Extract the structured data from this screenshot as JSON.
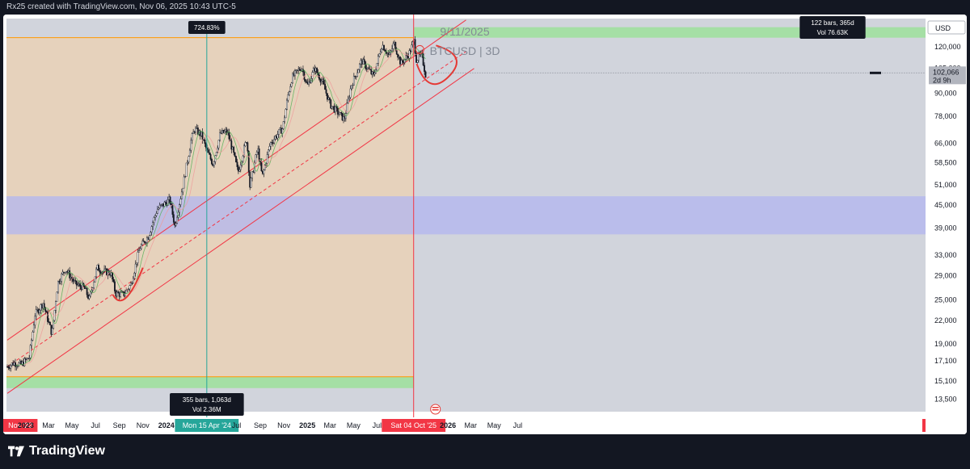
{
  "header": {
    "attribution": "Rx25 created with TradingView.com, Nov 06, 2025 10:43 UTC-5"
  },
  "footer": {
    "brand": "TradingView",
    "logo_icon": "tradingview-logo-icon"
  },
  "chart_data": {
    "type": "candlestick",
    "title": "9/11/2025",
    "subtitle": "BTCUSD | 3D",
    "currency": "USD",
    "y_scale": "log",
    "ylim": [
      12000,
      150000
    ],
    "y_ticks": [
      "120,000",
      "105,000",
      "90,000",
      "78,000",
      "66,000",
      "58,500",
      "51,000",
      "45,000",
      "39,000",
      "33,000",
      "29,000",
      "25,000",
      "22,000",
      "19,000",
      "17,100",
      "15,100",
      "13,500"
    ],
    "x_ticks": [
      "Nov '22",
      "2023",
      "Mar",
      "May",
      "Jul",
      "Sep",
      "Nov",
      "2024",
      "Ma",
      "Mon 15 Apr '24",
      "Jul",
      "Sep",
      "Nov",
      "2025",
      "Mar",
      "May",
      "Jul",
      "Sat 04 Oct '25",
      "2026",
      "Mar",
      "May",
      "Jul"
    ],
    "price_series": [
      [
        "2022-11-14",
        16500
      ],
      [
        "2022-12-01",
        16900
      ],
      [
        "2022-12-20",
        16700
      ],
      [
        "2023-01-10",
        17500
      ],
      [
        "2023-01-25",
        22800
      ],
      [
        "2023-02-15",
        24500
      ],
      [
        "2023-03-10",
        20200
      ],
      [
        "2023-03-25",
        27800
      ],
      [
        "2023-04-14",
        30300
      ],
      [
        "2023-05-10",
        27500
      ],
      [
        "2023-06-01",
        27000
      ],
      [
        "2023-06-15",
        25100
      ],
      [
        "2023-07-05",
        30500
      ],
      [
        "2023-07-20",
        29800
      ],
      [
        "2023-08-10",
        29500
      ],
      [
        "2023-08-22",
        26000
      ],
      [
        "2023-09-12",
        25800
      ],
      [
        "2023-10-01",
        27500
      ],
      [
        "2023-10-24",
        34500
      ],
      [
        "2023-11-15",
        37000
      ],
      [
        "2023-12-08",
        43800
      ],
      [
        "2024-01-10",
        46500
      ],
      [
        "2024-01-23",
        39500
      ],
      [
        "2024-02-15",
        52000
      ],
      [
        "2024-03-05",
        67000
      ],
      [
        "2024-03-14",
        72000
      ],
      [
        "2024-04-01",
        69500
      ],
      [
        "2024-04-15",
        63000
      ],
      [
        "2024-05-01",
        58000
      ],
      [
        "2024-05-20",
        70000
      ],
      [
        "2024-06-07",
        71000
      ],
      [
        "2024-06-25",
        61000
      ],
      [
        "2024-07-05",
        55000
      ],
      [
        "2024-07-28",
        68000
      ],
      [
        "2024-08-05",
        50500
      ],
      [
        "2024-08-25",
        64000
      ],
      [
        "2024-09-06",
        53500
      ],
      [
        "2024-09-27",
        66000
      ],
      [
        "2024-10-29",
        72500
      ],
      [
        "2024-11-12",
        89000
      ],
      [
        "2024-11-22",
        99000
      ],
      [
        "2024-12-17",
        106000
      ],
      [
        "2025-01-01",
        94000
      ],
      [
        "2025-01-20",
        105000
      ],
      [
        "2025-02-10",
        96000
      ],
      [
        "2025-03-01",
        84000
      ],
      [
        "2025-04-07",
        76500
      ],
      [
        "2025-04-25",
        94500
      ],
      [
        "2025-05-22",
        110000
      ],
      [
        "2025-06-22",
        100000
      ],
      [
        "2025-07-14",
        122000
      ],
      [
        "2025-08-02",
        113000
      ],
      [
        "2025-08-14",
        123000
      ],
      [
        "2025-09-01",
        108000
      ],
      [
        "2025-09-22",
        115000
      ],
      [
        "2025-10-06",
        125000
      ],
      [
        "2025-10-10",
        111000
      ],
      [
        "2025-10-25",
        114000
      ],
      [
        "2025-11-04",
        101000
      ],
      [
        "2025-11-06",
        102066
      ]
    ],
    "last_price": "102,066",
    "last_price_countdown": "2d 9h",
    "measure_tools": [
      {
        "percent": "724.83%",
        "bars": "355 bars, 1,063d",
        "volume": "Vol 2.36M"
      },
      {
        "bars": "122 bars, 365d",
        "volume": "Vol 76.63K"
      }
    ],
    "range_high": 127000,
    "range_low": 15500,
    "blue_zone": [
      37500,
      47500
    ],
    "colors": {
      "up": "#089981",
      "down": "#f23645",
      "channel": "#f23645",
      "range": "#ff9800",
      "zone": "#b2b5f0",
      "box": "#e6d2bc",
      "green": "#a5dfa5",
      "vline_left": "#26a69a",
      "vline_right": "#f23645"
    }
  }
}
